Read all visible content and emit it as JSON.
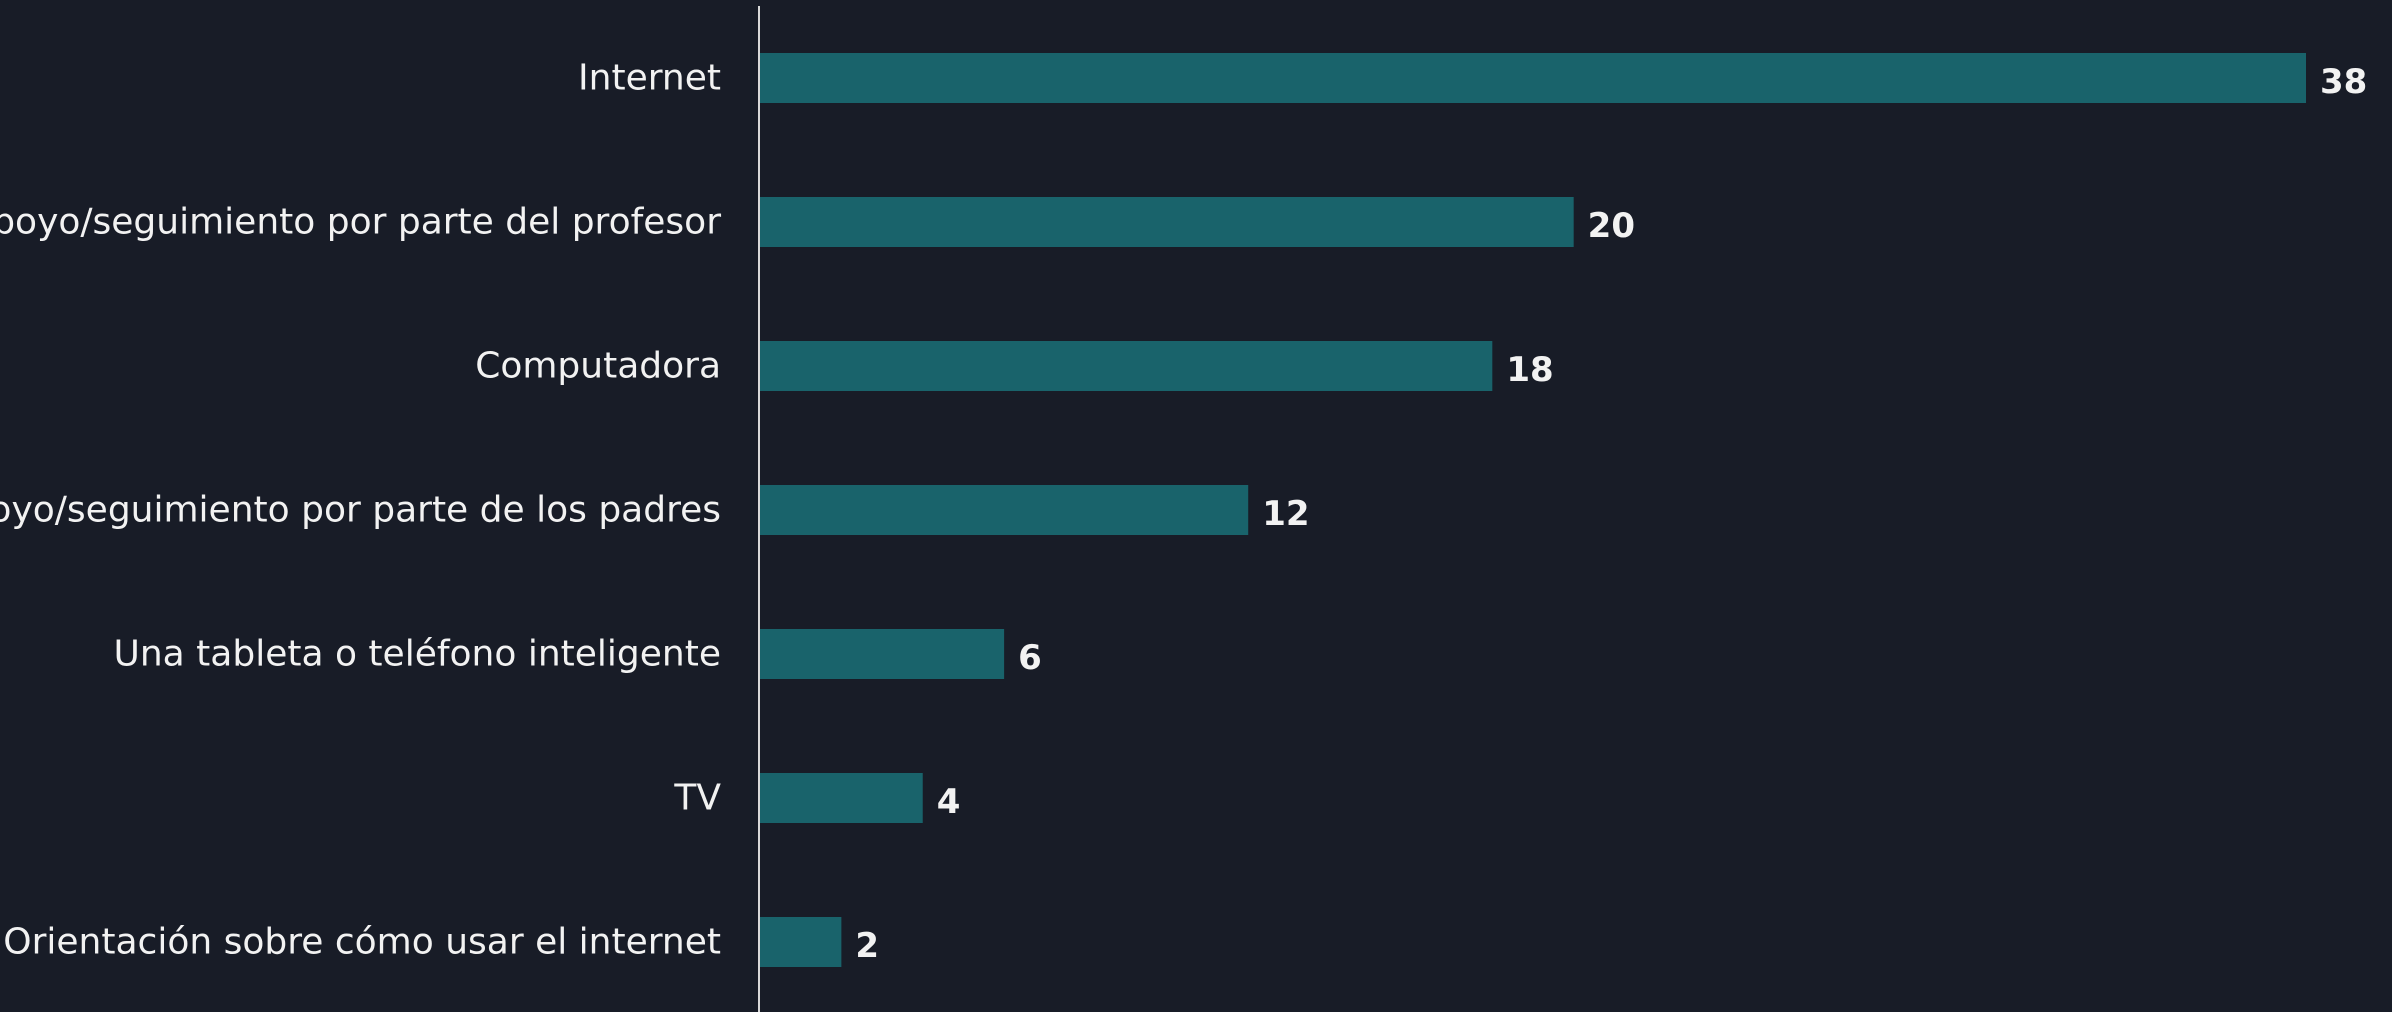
{
  "colors": {
    "background": "#181c27",
    "bar": "#19636b",
    "axis": "#d9d9d9",
    "text": "#f2f2f2"
  },
  "chart_data": {
    "type": "bar",
    "orientation": "horizontal",
    "title": "",
    "xlabel": "",
    "ylabel": "",
    "categories": [
      "Internet",
      "Apoyo/seguimiento por parte del profesor",
      "Computadora",
      "Apoyo/seguimiento por parte de los padres",
      "Una tableta o teléfono inteligente",
      "TV",
      "Orientación sobre cómo usar el internet"
    ],
    "values": [
      38,
      20,
      18,
      12,
      6,
      4,
      2
    ],
    "data_labels": [
      "38",
      "20",
      "18",
      "12",
      "6",
      "4",
      "2"
    ],
    "xlim": [
      0,
      38
    ],
    "grid": false,
    "legend": "none"
  }
}
